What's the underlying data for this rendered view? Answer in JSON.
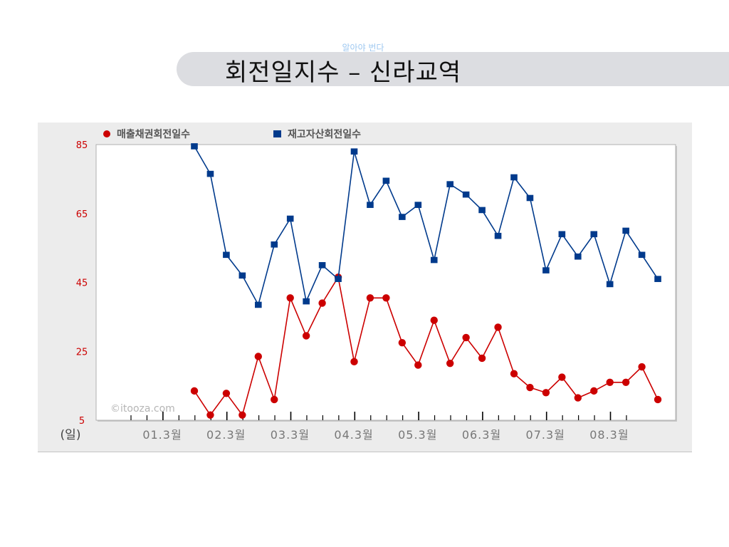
{
  "slide": {
    "note": "알아야 번다",
    "title": "회전일지수 – 신라교역"
  },
  "chart_data": {
    "type": "line",
    "title": "",
    "xlabel": "(일)",
    "ylabel": "",
    "ylim": [
      5,
      85
    ],
    "yticks": [
      "85",
      "65",
      "45",
      "25",
      "5"
    ],
    "x_tick_labels": [
      "01.3월",
      "02.3월",
      "03.3월",
      "04.3월",
      "05.3월",
      "06.3월",
      "07.3월",
      "08.3월"
    ],
    "watermark": "©itooza.com",
    "grid": false,
    "legend_position": "top-left",
    "series": [
      {
        "name": "매출채권회전일수",
        "color": "#cc0000",
        "marker": "circle",
        "values": [
          13.5,
          6.5,
          12.8,
          6.5,
          23.5,
          11,
          40.5,
          29.5,
          39,
          46.5,
          22,
          40.5,
          40.5,
          27.5,
          21,
          34,
          21.5,
          29,
          23,
          32,
          18.5,
          14.5,
          13,
          17.5,
          11.5,
          13.5,
          16,
          16,
          20.5,
          11
        ]
      },
      {
        "name": "재고자산회전일수",
        "color": "#003a8c",
        "marker": "square",
        "values": [
          84.5,
          76.5,
          53,
          47,
          38.5,
          56,
          63.5,
          39.5,
          50,
          46,
          83,
          67.5,
          74.5,
          64,
          67.5,
          51.5,
          73.5,
          70.5,
          66,
          58.5,
          75.5,
          69.5,
          48.5,
          59,
          52.5,
          59,
          44.5,
          60,
          53,
          46
        ]
      }
    ]
  }
}
